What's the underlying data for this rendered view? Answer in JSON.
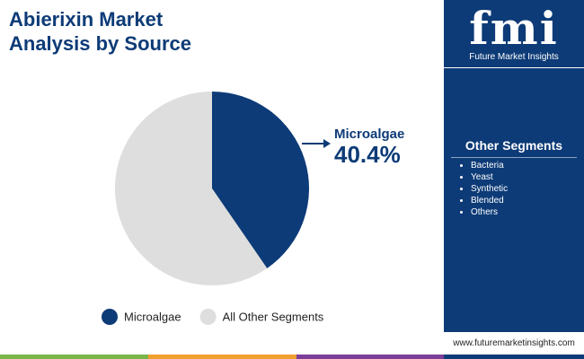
{
  "chart_data": {
    "type": "pie",
    "title": "Abierixin Market Analysis by Source",
    "categories": [
      "Microalgae",
      "All Other Segments"
    ],
    "values": [
      40.4,
      59.6
    ],
    "value_labels": [
      "40.4%",
      null
    ],
    "colors": [
      "#0d3b77",
      "#dedede"
    ]
  },
  "sidebar": {
    "logo": "fmi",
    "brand": "Future Market Insights",
    "heading": "Other Segments",
    "items": [
      "Bacteria",
      "Yeast",
      "Synthetic",
      "Blended",
      "Others"
    ],
    "website": "www.futuremarketinsights.com"
  }
}
